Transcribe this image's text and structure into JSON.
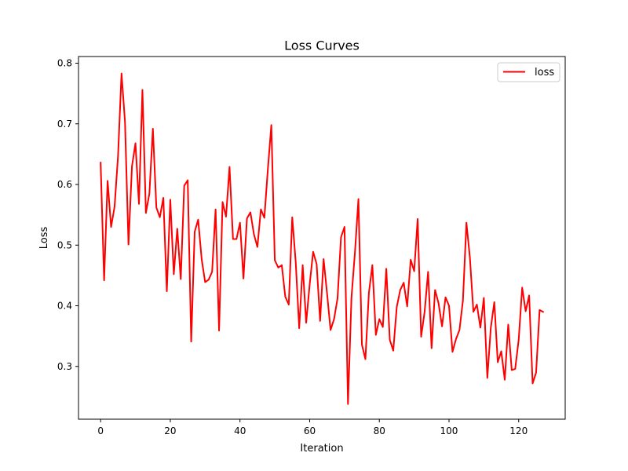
{
  "chart_data": {
    "type": "line",
    "title": "Loss Curves",
    "xlabel": "Iteration",
    "ylabel": "Loss",
    "xlim": [
      -6.35,
      133.35
    ],
    "ylim": [
      0.213,
      0.811
    ],
    "x_ticks": [
      0,
      20,
      40,
      60,
      80,
      100,
      120
    ],
    "y_ticks": [
      0.3,
      0.4,
      0.5,
      0.6,
      0.7,
      0.8
    ],
    "x_tick_labels": [
      "0",
      "20",
      "40",
      "60",
      "80",
      "100",
      "120"
    ],
    "y_tick_labels": [
      "0.3",
      "0.4",
      "0.5",
      "0.6",
      "0.7",
      "0.8"
    ],
    "grid": false,
    "legend": {
      "placement": "top-right"
    },
    "series": [
      {
        "name": "loss",
        "color": "#ff0000",
        "x": [
          0,
          1,
          2,
          3,
          4,
          5,
          6,
          7,
          8,
          9,
          10,
          11,
          12,
          13,
          14,
          15,
          16,
          17,
          18,
          19,
          20,
          21,
          22,
          23,
          24,
          25,
          26,
          27,
          28,
          29,
          30,
          31,
          32,
          33,
          34,
          35,
          36,
          37,
          38,
          39,
          40,
          41,
          42,
          43,
          44,
          45,
          46,
          47,
          48,
          49,
          50,
          51,
          52,
          53,
          54,
          55,
          56,
          57,
          58,
          59,
          60,
          61,
          62,
          63,
          64,
          65,
          66,
          67,
          68,
          69,
          70,
          71,
          72,
          73,
          74,
          75,
          76,
          77,
          78,
          79,
          80,
          81,
          82,
          83,
          84,
          85,
          86,
          87,
          88,
          89,
          90,
          91,
          92,
          93,
          94,
          95,
          96,
          97,
          98,
          99,
          100,
          101,
          102,
          103,
          104,
          105,
          106,
          107,
          108,
          109,
          110,
          111,
          112,
          113,
          114,
          115,
          116,
          117,
          118,
          119,
          120,
          121,
          122,
          123,
          124,
          125,
          126,
          127
        ],
        "y": [
          0.636,
          0.442,
          0.606,
          0.53,
          0.563,
          0.647,
          0.783,
          0.703,
          0.501,
          0.63,
          0.668,
          0.568,
          0.756,
          0.553,
          0.585,
          0.692,
          0.562,
          0.546,
          0.578,
          0.424,
          0.575,
          0.452,
          0.527,
          0.444,
          0.598,
          0.607,
          0.341,
          0.522,
          0.542,
          0.477,
          0.439,
          0.443,
          0.456,
          0.559,
          0.359,
          0.571,
          0.547,
          0.629,
          0.51,
          0.51,
          0.537,
          0.445,
          0.544,
          0.554,
          0.518,
          0.497,
          0.559,
          0.545,
          0.625,
          0.698,
          0.475,
          0.463,
          0.467,
          0.415,
          0.402,
          0.546,
          0.472,
          0.363,
          0.467,
          0.372,
          0.435,
          0.489,
          0.469,
          0.375,
          0.477,
          0.42,
          0.36,
          0.378,
          0.412,
          0.513,
          0.53,
          0.238,
          0.413,
          0.488,
          0.576,
          0.336,
          0.312,
          0.421,
          0.467,
          0.352,
          0.378,
          0.365,
          0.461,
          0.344,
          0.326,
          0.398,
          0.426,
          0.438,
          0.399,
          0.476,
          0.457,
          0.543,
          0.349,
          0.39,
          0.456,
          0.33,
          0.426,
          0.404,
          0.366,
          0.414,
          0.4,
          0.324,
          0.345,
          0.36,
          0.409,
          0.537,
          0.479,
          0.39,
          0.402,
          0.364,
          0.413,
          0.281,
          0.364,
          0.406,
          0.307,
          0.325,
          0.278,
          0.369,
          0.294,
          0.296,
          0.344,
          0.43,
          0.391,
          0.417,
          0.272,
          0.29,
          0.393,
          0.39
        ]
      }
    ]
  }
}
